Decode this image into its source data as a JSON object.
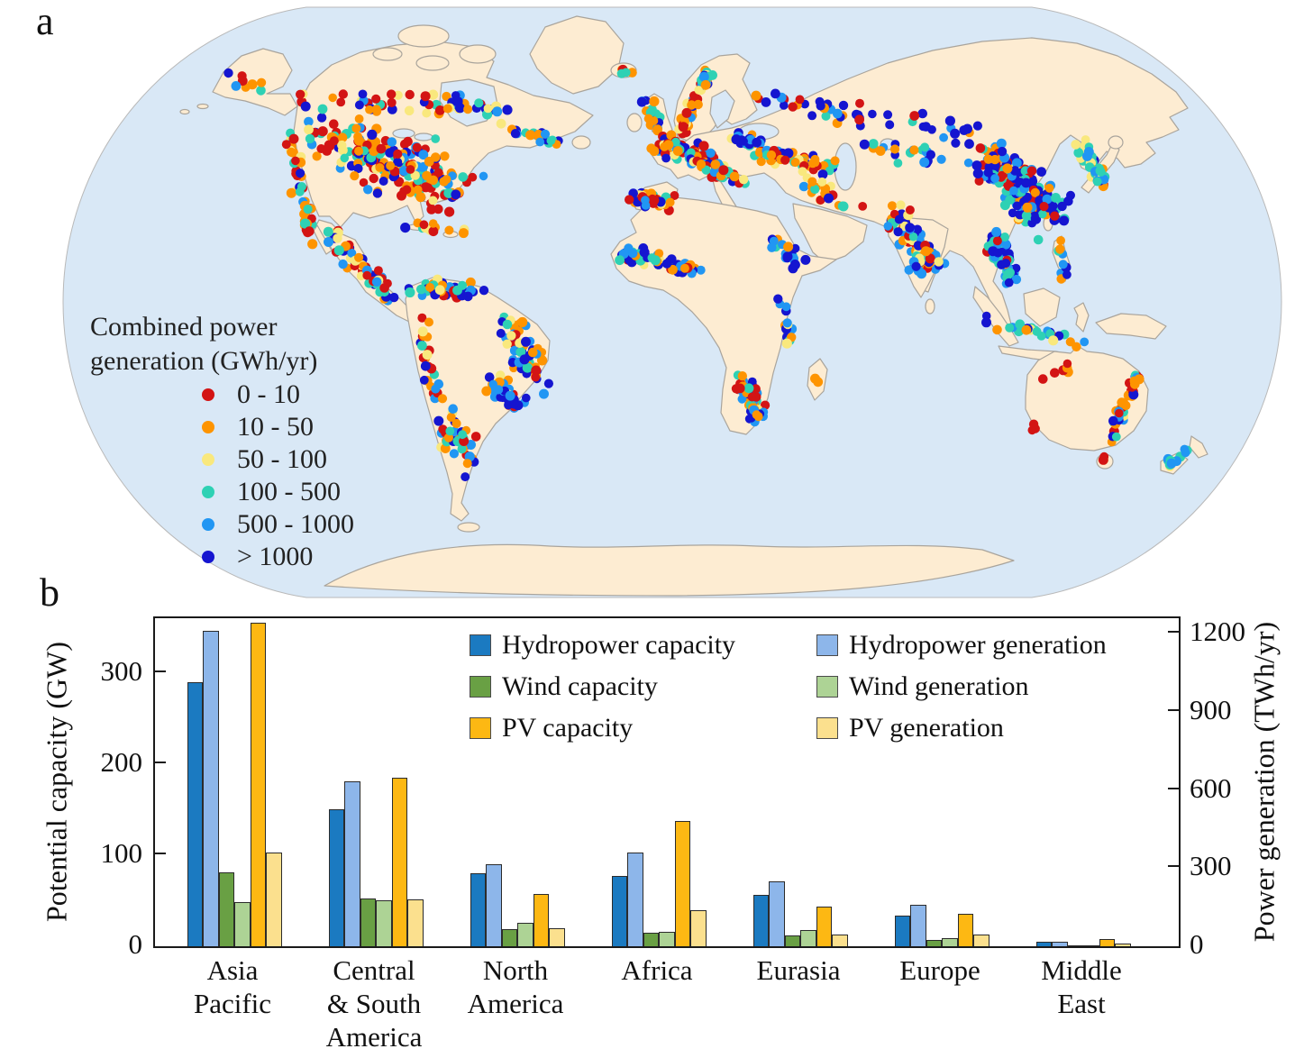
{
  "page": {
    "panel_a_label": "a",
    "panel_b_label": "b"
  },
  "map_colors": {
    "ocean": "#d9e8f6",
    "land": "#fdecd2",
    "coast": "#a9a49c",
    "outline": "#b9b9b9"
  },
  "chart_data": [
    {
      "type": "scatter",
      "subtype": "world-map-dots",
      "panel": "a",
      "legend_title": "Combined power generation (GWh/yr)",
      "legend_title_lines": [
        "Combined power",
        "generation (GWh/yr)"
      ],
      "categories": [
        {
          "label": "0 - 10",
          "color": "#d31414"
        },
        {
          "label": "10 - 50",
          "color": "#fe9400"
        },
        {
          "label": "50 - 100",
          "color": "#f9e87d"
        },
        {
          "label": "100 - 500",
          "color": "#2ed1b4"
        },
        {
          "label": "500 - 1000",
          "color": "#2196f3"
        },
        {
          "label": "> 1000",
          "color": "#1515d0"
        }
      ],
      "dot_radius": 5.2,
      "seed": 20240613,
      "dot_clusters": [
        {
          "region": "us-west-coast",
          "a": [
            322,
            155
          ],
          "b": [
            345,
            265
          ],
          "s": [
            10,
            14
          ],
          "n": 45,
          "w": [
            4,
            3,
            1,
            2,
            1,
            1
          ]
        },
        {
          "region": "us-main",
          "a": [
            355,
            150
          ],
          "b": [
            500,
            210
          ],
          "s": [
            40,
            32
          ],
          "n": 215,
          "w": [
            3,
            3,
            1,
            2,
            1,
            2
          ]
        },
        {
          "region": "canada-south",
          "a": [
            340,
            110
          ],
          "b": [
            520,
            120
          ],
          "s": [
            35,
            18
          ],
          "n": 45,
          "w": [
            2,
            2,
            1,
            1,
            1,
            3
          ]
        },
        {
          "region": "quebec-hydro",
          "a": [
            495,
            115
          ],
          "b": [
            550,
            120
          ],
          "s": [
            14,
            10
          ],
          "n": 16,
          "w": [
            0,
            1,
            1,
            1,
            1,
            4
          ]
        },
        {
          "region": "canada-east",
          "a": [
            560,
            140
          ],
          "b": [
            620,
            160
          ],
          "s": [
            18,
            12
          ],
          "n": 20,
          "w": [
            1,
            3,
            1,
            1,
            1,
            2
          ]
        },
        {
          "region": "alaska",
          "a": [
            255,
            85
          ],
          "b": [
            295,
            95
          ],
          "s": [
            12,
            9
          ],
          "n": 8,
          "w": [
            1,
            2,
            0,
            1,
            1,
            1
          ]
        },
        {
          "region": "mexico-central-am",
          "a": [
            368,
            255
          ],
          "b": [
            430,
            330
          ],
          "s": [
            14,
            12
          ],
          "n": 55,
          "w": [
            3,
            2,
            1,
            2,
            1,
            2
          ]
        },
        {
          "region": "caribbean",
          "a": [
            445,
            248
          ],
          "b": [
            530,
            262
          ],
          "s": [
            12,
            7
          ],
          "n": 13,
          "w": [
            1,
            2,
            1,
            1,
            1,
            1
          ]
        },
        {
          "region": "colombia-venezuela",
          "a": [
            462,
            320
          ],
          "b": [
            530,
            322
          ],
          "s": [
            16,
            12
          ],
          "n": 40,
          "w": [
            2,
            2,
            1,
            2,
            1,
            3
          ]
        },
        {
          "region": "andes",
          "a": [
            465,
            360
          ],
          "b": [
            495,
            500
          ],
          "s": [
            9,
            12
          ],
          "n": 36,
          "w": [
            2,
            2,
            1,
            2,
            1,
            1
          ]
        },
        {
          "region": "brazil-east",
          "a": [
            565,
            360
          ],
          "b": [
            595,
            420
          ],
          "s": [
            20,
            22
          ],
          "n": 55,
          "w": [
            1,
            2,
            1,
            1,
            3,
            3
          ]
        },
        {
          "region": "brazil-southeast",
          "a": [
            548,
            425
          ],
          "b": [
            575,
            450
          ],
          "s": [
            14,
            12
          ],
          "n": 45,
          "w": [
            1,
            1,
            1,
            1,
            3,
            4
          ]
        },
        {
          "region": "argentina-chile",
          "a": [
            505,
            465
          ],
          "b": [
            520,
            520
          ],
          "s": [
            14,
            16
          ],
          "n": 30,
          "w": [
            2,
            2,
            1,
            2,
            1,
            1
          ]
        },
        {
          "region": "iceland",
          "a": [
            688,
            78
          ],
          "b": [
            700,
            80
          ],
          "s": [
            7,
            4
          ],
          "n": 5,
          "w": [
            1,
            1,
            0,
            1,
            0,
            1
          ]
        },
        {
          "region": "uk-ireland",
          "a": [
            718,
            112
          ],
          "b": [
            732,
            148
          ],
          "s": [
            8,
            8
          ],
          "n": 22,
          "w": [
            1,
            3,
            0,
            2,
            1,
            1
          ]
        },
        {
          "region": "norway-sweden",
          "a": [
            757,
            145
          ],
          "b": [
            788,
            75
          ],
          "s": [
            8,
            9
          ],
          "n": 50,
          "w": [
            3,
            4,
            1,
            1,
            1,
            1
          ]
        },
        {
          "region": "western-europe",
          "a": [
            733,
            160
          ],
          "b": [
            790,
            178
          ],
          "s": [
            16,
            13
          ],
          "n": 65,
          "w": [
            2,
            3,
            1,
            2,
            2,
            2
          ]
        },
        {
          "region": "iberia",
          "a": [
            703,
            218
          ],
          "b": [
            742,
            226
          ],
          "s": [
            9,
            8
          ],
          "n": 52,
          "w": [
            3,
            4,
            1,
            1,
            1,
            1
          ]
        },
        {
          "region": "central-s-europe",
          "a": [
            780,
            185
          ],
          "b": [
            830,
            200
          ],
          "s": [
            14,
            10
          ],
          "n": 42,
          "w": [
            2,
            3,
            1,
            2,
            1,
            1
          ]
        },
        {
          "region": "eastern-europe",
          "a": [
            815,
            150
          ],
          "b": [
            860,
            170
          ],
          "s": [
            16,
            13
          ],
          "n": 32,
          "w": [
            1,
            2,
            1,
            2,
            1,
            3
          ]
        },
        {
          "region": "turkey-caucasus",
          "a": [
            850,
            170
          ],
          "b": [
            920,
            185
          ],
          "s": [
            13,
            10
          ],
          "n": 48,
          "w": [
            2,
            4,
            1,
            1,
            1,
            2
          ]
        },
        {
          "region": "russia-west",
          "a": [
            850,
            110
          ],
          "b": [
            960,
            130
          ],
          "s": [
            25,
            16
          ],
          "n": 30,
          "w": [
            1,
            1,
            0,
            1,
            1,
            4
          ]
        },
        {
          "region": "siberia",
          "a": [
            980,
            125
          ],
          "b": [
            1080,
            150
          ],
          "s": [
            30,
            14
          ],
          "n": 18,
          "w": [
            1,
            1,
            0,
            1,
            1,
            4
          ]
        },
        {
          "region": "central-asia",
          "a": [
            950,
            160
          ],
          "b": [
            1040,
            175
          ],
          "s": [
            20,
            13
          ],
          "n": 20,
          "w": [
            1,
            1,
            0,
            2,
            1,
            3
          ]
        },
        {
          "region": "middle-east",
          "a": [
            890,
            200
          ],
          "b": [
            950,
            235
          ],
          "s": [
            14,
            13
          ],
          "n": 22,
          "w": [
            1,
            3,
            1,
            1,
            1,
            1
          ]
        },
        {
          "region": "india",
          "a": [
            995,
            235
          ],
          "b": [
            1035,
            300
          ],
          "s": [
            20,
            17
          ],
          "n": 88,
          "w": [
            2,
            2,
            2,
            2,
            2,
            3
          ]
        },
        {
          "region": "china",
          "a": [
            1095,
            170
          ],
          "b": [
            1165,
            240
          ],
          "s": [
            30,
            26
          ],
          "n": 190,
          "w": [
            2,
            2,
            1,
            2,
            2,
            5
          ]
        },
        {
          "region": "korea-japan",
          "a": [
            1200,
            160
          ],
          "b": [
            1225,
            205
          ],
          "s": [
            9,
            9
          ],
          "n": 42,
          "w": [
            1,
            1,
            2,
            3,
            1,
            1
          ]
        },
        {
          "region": "indochina",
          "a": [
            1100,
            260
          ],
          "b": [
            1125,
            310
          ],
          "s": [
            13,
            14
          ],
          "n": 55,
          "w": [
            1,
            1,
            0,
            2,
            2,
            4
          ]
        },
        {
          "region": "indonesia",
          "a": [
            1095,
            355
          ],
          "b": [
            1200,
            380
          ],
          "s": [
            12,
            8
          ],
          "n": 26,
          "w": [
            0,
            1,
            1,
            3,
            2,
            2
          ]
        },
        {
          "region": "philippines",
          "a": [
            1176,
            272
          ],
          "b": [
            1182,
            305
          ],
          "s": [
            5,
            7
          ],
          "n": 9,
          "w": [
            0,
            1,
            0,
            2,
            2,
            1
          ]
        },
        {
          "region": "west-africa",
          "a": [
            695,
            280
          ],
          "b": [
            775,
            300
          ],
          "s": [
            14,
            10
          ],
          "n": 52,
          "w": [
            2,
            2,
            1,
            2,
            2,
            3
          ]
        },
        {
          "region": "ethiopia-east-afr",
          "a": [
            858,
            268
          ],
          "b": [
            890,
            292
          ],
          "s": [
            11,
            11
          ],
          "n": 22,
          "w": [
            0,
            1,
            0,
            1,
            2,
            3
          ]
        },
        {
          "region": "african-lakes",
          "a": [
            862,
            320
          ],
          "b": [
            878,
            380
          ],
          "s": [
            7,
            9
          ],
          "n": 14,
          "w": [
            0,
            1,
            1,
            1,
            2,
            2
          ]
        },
        {
          "region": "southern-africa",
          "a": [
            822,
            420
          ],
          "b": [
            842,
            465
          ],
          "s": [
            13,
            13
          ],
          "n": 52,
          "w": [
            3,
            4,
            1,
            2,
            2,
            2
          ]
        },
        {
          "region": "madagascar",
          "a": [
            908,
            420
          ],
          "b": [
            908,
            420
          ],
          "s": [
            4,
            6
          ],
          "n": 2,
          "w": [
            0,
            1,
            0,
            0,
            1,
            0
          ]
        },
        {
          "region": "australia-east",
          "a": [
            1262,
            410
          ],
          "b": [
            1234,
            482
          ],
          "s": [
            8,
            9
          ],
          "n": 38,
          "w": [
            3,
            3,
            1,
            2,
            1,
            1
          ]
        },
        {
          "region": "australia-north",
          "a": [
            1150,
            420
          ],
          "b": [
            1200,
            398
          ],
          "s": [
            16,
            12
          ],
          "n": 6,
          "w": [
            2,
            1,
            0,
            0,
            0,
            1
          ]
        },
        {
          "region": "australia-sw",
          "a": [
            1142,
            472
          ],
          "b": [
            1146,
            476
          ],
          "s": [
            5,
            4
          ],
          "n": 3,
          "w": [
            3,
            1,
            0,
            0,
            0,
            0
          ]
        },
        {
          "region": "tasmania",
          "a": [
            1222,
            508
          ],
          "b": [
            1226,
            512
          ],
          "s": [
            4,
            3
          ],
          "n": 3,
          "w": [
            2,
            1,
            1,
            0,
            0,
            0
          ]
        },
        {
          "region": "new-zealand",
          "a": [
            1295,
            515
          ],
          "b": [
            1325,
            495
          ],
          "s": [
            8,
            7
          ],
          "n": 12,
          "w": [
            2,
            1,
            1,
            3,
            2,
            1
          ]
        }
      ]
    },
    {
      "type": "bar",
      "panel": "b",
      "categories": [
        "Asia Pacific",
        "Central & South America",
        "North America",
        "Africa",
        "Eurasia",
        "Europe",
        "Middle East"
      ],
      "category_label_lines": [
        [
          "Asia",
          "Pacific"
        ],
        [
          "Central",
          "& South",
          "America"
        ],
        [
          "North",
          "America"
        ],
        [
          "Africa"
        ],
        [
          "Eurasia"
        ],
        [
          "Europe"
        ],
        [
          "Middle",
          "East"
        ]
      ],
      "series": [
        {
          "name": "Hydropower capacity",
          "axis": "left",
          "color": "#1b7ac1",
          "values": [
            290,
            150,
            80,
            77,
            56,
            34,
            5
          ]
        },
        {
          "name": "Hydropower generation",
          "axis": "right",
          "color": "#8db6ea",
          "values": [
            1210,
            635,
            315,
            360,
            250,
            160,
            18
          ]
        },
        {
          "name": "Wind capacity",
          "axis": "left",
          "color": "#69a044",
          "values": [
            81,
            52,
            19,
            15,
            12,
            7,
            1.5
          ]
        },
        {
          "name": "Wind generation",
          "axis": "right",
          "color": "#add395",
          "values": [
            170,
            175,
            90,
            55,
            63,
            33,
            5
          ]
        },
        {
          "name": "PV capacity",
          "axis": "left",
          "color": "#fdb813",
          "values": [
            355,
            185,
            57,
            138,
            44,
            36,
            8
          ]
        },
        {
          "name": "PV generation",
          "axis": "right",
          "color": "#fbe08e",
          "values": [
            360,
            180,
            70,
            140,
            45,
            45,
            10
          ]
        }
      ],
      "left_axis": {
        "label": "Potential capacity (GW)",
        "ticks": [
          0,
          100,
          200,
          300
        ],
        "max": 360
      },
      "right_axis": {
        "label": "Power generation (TWh/yr)",
        "ticks": [
          0,
          300,
          600,
          900,
          1200
        ],
        "max": 1260
      },
      "legend_position": "top-center-inside",
      "grid": false
    }
  ]
}
